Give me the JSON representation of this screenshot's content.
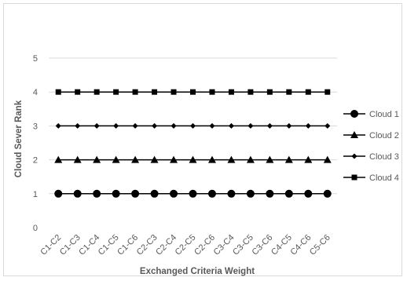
{
  "chart_data": {
    "type": "line",
    "title": "",
    "xlabel": "Exchanged Criteria Weight",
    "ylabel": "Cloud Sever Rank",
    "ylim": [
      0,
      5
    ],
    "yticks": [
      "0",
      "1",
      "2",
      "3",
      "4",
      "5"
    ],
    "categories": [
      "C1-C2",
      "C1-C3",
      "C1-C4",
      "C1-C5",
      "C1-C6",
      "C2-C3",
      "C2-C4",
      "C2-C5",
      "C2-C6",
      "C3-C4",
      "C3-C5",
      "C3-C6",
      "C4-C5",
      "C4-C6",
      "C5-C6"
    ],
    "series": [
      {
        "name": "Cloud 1",
        "marker": "circle",
        "values": [
          1,
          1,
          1,
          1,
          1,
          1,
          1,
          1,
          1,
          1,
          1,
          1,
          1,
          1,
          1
        ]
      },
      {
        "name": "Cloud 2",
        "marker": "triangle",
        "values": [
          2,
          2,
          2,
          2,
          2,
          2,
          2,
          2,
          2,
          2,
          2,
          2,
          2,
          2,
          2
        ]
      },
      {
        "name": "Cloud 3",
        "marker": "diamond",
        "values": [
          3,
          3,
          3,
          3,
          3,
          3,
          3,
          3,
          3,
          3,
          3,
          3,
          3,
          3,
          3
        ]
      },
      {
        "name": "Cloud 4",
        "marker": "square",
        "values": [
          4,
          4,
          4,
          4,
          4,
          4,
          4,
          4,
          4,
          4,
          4,
          4,
          4,
          4,
          4
        ]
      }
    ],
    "grid": true,
    "legend_position": "right",
    "colors": {
      "line": "#000000",
      "grid": "#d9d9d9",
      "text": "#595959"
    }
  }
}
